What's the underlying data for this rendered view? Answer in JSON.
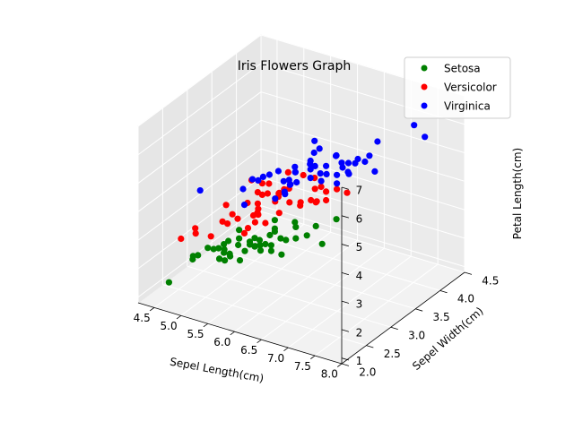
{
  "chart_data": {
    "type": "scatter",
    "title": "Iris Flowers Graph",
    "xlabel": "Sepel Length(cm)",
    "ylabel": "Sepel Width(cm)",
    "zlabel": "Petal Length(cm)",
    "xlim": [
      4.2,
      8.0
    ],
    "ylim": [
      2.0,
      4.5
    ],
    "zlim": [
      0.8,
      7.0
    ],
    "xticks": [
      "4.5",
      "5.0",
      "5.5",
      "6.0",
      "6.5",
      "7.0",
      "7.5",
      "8.0"
    ],
    "yticks": [
      "2.0",
      "2.5",
      "3.0",
      "3.5",
      "4.0",
      "4.5"
    ],
    "zticks": [
      "1",
      "2",
      "3",
      "4",
      "5",
      "6",
      "7"
    ],
    "grid": true,
    "legend_position": "top-right",
    "series": [
      {
        "name": "Setosa",
        "color": "#008000",
        "points": [
          [
            5.1,
            3.5,
            1.4
          ],
          [
            4.9,
            3.0,
            1.4
          ],
          [
            4.7,
            3.2,
            1.3
          ],
          [
            4.6,
            3.1,
            1.5
          ],
          [
            5.0,
            3.6,
            1.4
          ],
          [
            5.4,
            3.9,
            1.7
          ],
          [
            4.6,
            3.4,
            1.4
          ],
          [
            5.0,
            3.4,
            1.5
          ],
          [
            4.4,
            2.9,
            1.4
          ],
          [
            4.9,
            3.1,
            1.5
          ],
          [
            5.4,
            3.7,
            1.5
          ],
          [
            4.8,
            3.4,
            1.6
          ],
          [
            4.8,
            3.0,
            1.4
          ],
          [
            4.3,
            3.0,
            1.1
          ],
          [
            5.8,
            4.0,
            1.2
          ],
          [
            5.7,
            4.4,
            1.5
          ],
          [
            5.4,
            3.9,
            1.3
          ],
          [
            5.1,
            3.5,
            1.4
          ],
          [
            5.7,
            3.8,
            1.7
          ],
          [
            5.1,
            3.8,
            1.5
          ],
          [
            5.4,
            3.4,
            1.7
          ],
          [
            5.1,
            3.7,
            1.5
          ],
          [
            4.6,
            3.6,
            1.0
          ],
          [
            5.1,
            3.3,
            1.7
          ],
          [
            4.8,
            3.4,
            1.9
          ],
          [
            5.0,
            3.0,
            1.6
          ],
          [
            5.0,
            3.4,
            1.6
          ],
          [
            5.2,
            3.5,
            1.5
          ],
          [
            5.2,
            3.4,
            1.4
          ],
          [
            4.7,
            3.2,
            1.6
          ],
          [
            4.8,
            3.1,
            1.6
          ],
          [
            5.4,
            3.4,
            1.5
          ],
          [
            5.2,
            4.1,
            1.5
          ],
          [
            5.5,
            4.2,
            1.4
          ],
          [
            4.9,
            3.1,
            1.5
          ],
          [
            5.0,
            3.2,
            1.2
          ],
          [
            5.5,
            3.5,
            1.3
          ],
          [
            4.4,
            3.0,
            1.3
          ],
          [
            5.1,
            3.4,
            1.5
          ],
          [
            5.0,
            3.5,
            1.3
          ],
          [
            4.5,
            2.3,
            1.3
          ],
          [
            4.4,
            3.2,
            1.3
          ],
          [
            5.0,
            3.5,
            1.6
          ],
          [
            5.1,
            3.8,
            1.9
          ],
          [
            4.8,
            3.0,
            1.4
          ],
          [
            5.1,
            3.8,
            1.6
          ],
          [
            4.6,
            3.2,
            1.4
          ],
          [
            5.3,
            3.7,
            1.5
          ],
          [
            5.0,
            3.3,
            1.4
          ]
        ]
      },
      {
        "name": "Versicolor",
        "color": "#ff0000",
        "points": [
          [
            7.0,
            3.2,
            4.7
          ],
          [
            6.4,
            3.2,
            4.5
          ],
          [
            6.9,
            3.1,
            4.9
          ],
          [
            5.5,
            2.3,
            4.0
          ],
          [
            6.5,
            2.8,
            4.6
          ],
          [
            5.7,
            2.8,
            4.5
          ],
          [
            6.3,
            3.3,
            4.7
          ],
          [
            4.9,
            2.4,
            3.3
          ],
          [
            6.6,
            2.9,
            4.6
          ],
          [
            5.2,
            2.7,
            3.9
          ],
          [
            5.0,
            2.0,
            3.5
          ],
          [
            5.9,
            3.0,
            4.2
          ],
          [
            6.0,
            2.2,
            4.0
          ],
          [
            6.1,
            2.9,
            4.7
          ],
          [
            5.6,
            2.9,
            3.6
          ],
          [
            6.7,
            3.1,
            4.4
          ],
          [
            5.6,
            3.0,
            4.5
          ],
          [
            5.8,
            2.7,
            4.1
          ],
          [
            6.2,
            2.2,
            4.5
          ],
          [
            5.6,
            2.5,
            3.9
          ],
          [
            5.9,
            3.2,
            4.8
          ],
          [
            6.1,
            2.8,
            4.0
          ],
          [
            6.3,
            2.5,
            4.9
          ],
          [
            6.1,
            2.8,
            4.7
          ],
          [
            6.4,
            2.9,
            4.3
          ],
          [
            6.6,
            3.0,
            4.4
          ],
          [
            6.8,
            2.8,
            4.8
          ],
          [
            6.7,
            3.0,
            5.0
          ],
          [
            6.0,
            2.9,
            4.5
          ],
          [
            5.7,
            2.6,
            3.5
          ],
          [
            5.5,
            2.4,
            3.8
          ],
          [
            5.8,
            2.7,
            3.9
          ],
          [
            6.0,
            2.7,
            5.1
          ],
          [
            5.4,
            3.0,
            4.5
          ],
          [
            6.0,
            3.4,
            4.5
          ],
          [
            6.7,
            3.1,
            4.7
          ],
          [
            6.3,
            2.3,
            4.4
          ],
          [
            5.6,
            3.0,
            4.1
          ],
          [
            5.5,
            2.5,
            4.0
          ],
          [
            6.1,
            3.0,
            4.6
          ],
          [
            5.8,
            2.6,
            4.0
          ],
          [
            5.0,
            2.3,
            3.3
          ],
          [
            5.6,
            2.7,
            4.2
          ],
          [
            5.7,
            3.0,
            4.2
          ],
          [
            6.2,
            2.9,
            4.3
          ],
          [
            5.1,
            2.5,
            3.0
          ],
          [
            5.7,
            2.8,
            4.1
          ]
        ]
      },
      {
        "name": "Virginica",
        "color": "#0000ff",
        "points": [
          [
            6.3,
            3.3,
            6.0
          ],
          [
            5.8,
            2.7,
            5.1
          ],
          [
            7.1,
            3.0,
            5.9
          ],
          [
            6.3,
            2.9,
            5.6
          ],
          [
            6.5,
            3.0,
            5.8
          ],
          [
            7.6,
            3.0,
            6.6
          ],
          [
            4.9,
            2.5,
            4.5
          ],
          [
            7.3,
            2.9,
            6.3
          ],
          [
            6.7,
            2.5,
            5.8
          ],
          [
            7.2,
            3.6,
            6.1
          ],
          [
            6.5,
            3.2,
            5.1
          ],
          [
            6.4,
            2.7,
            5.3
          ],
          [
            6.8,
            3.0,
            5.5
          ],
          [
            5.7,
            2.5,
            5.0
          ],
          [
            5.8,
            2.8,
            5.1
          ],
          [
            6.4,
            3.2,
            5.3
          ],
          [
            6.5,
            3.0,
            5.5
          ],
          [
            7.7,
            3.8,
            6.7
          ],
          [
            7.7,
            2.6,
            6.9
          ],
          [
            6.0,
            2.2,
            5.0
          ],
          [
            6.9,
            3.2,
            5.7
          ],
          [
            5.6,
            2.8,
            4.9
          ],
          [
            7.7,
            2.8,
            6.7
          ],
          [
            6.3,
            2.7,
            4.9
          ],
          [
            6.7,
            3.3,
            5.7
          ],
          [
            7.2,
            3.2,
            6.0
          ],
          [
            6.2,
            2.8,
            4.8
          ],
          [
            6.1,
            3.0,
            4.9
          ],
          [
            6.4,
            2.8,
            5.6
          ],
          [
            7.2,
            3.0,
            5.8
          ],
          [
            7.4,
            2.8,
            6.1
          ],
          [
            7.9,
            3.8,
            6.4
          ],
          [
            6.4,
            2.8,
            5.6
          ],
          [
            6.3,
            2.8,
            5.1
          ],
          [
            6.1,
            2.6,
            5.6
          ],
          [
            7.7,
            3.0,
            6.1
          ],
          [
            6.3,
            3.4,
            5.6
          ],
          [
            6.4,
            3.1,
            5.5
          ],
          [
            6.0,
            3.0,
            4.8
          ],
          [
            6.9,
            3.1,
            5.4
          ],
          [
            6.7,
            3.1,
            5.6
          ],
          [
            6.9,
            3.1,
            5.1
          ],
          [
            6.8,
            3.2,
            5.9
          ],
          [
            6.7,
            3.3,
            5.7
          ],
          [
            6.7,
            3.0,
            5.2
          ],
          [
            6.3,
            2.5,
            5.0
          ],
          [
            6.5,
            3.0,
            5.2
          ],
          [
            6.2,
            3.4,
            5.4
          ],
          [
            5.9,
            3.0,
            5.1
          ]
        ]
      }
    ]
  }
}
